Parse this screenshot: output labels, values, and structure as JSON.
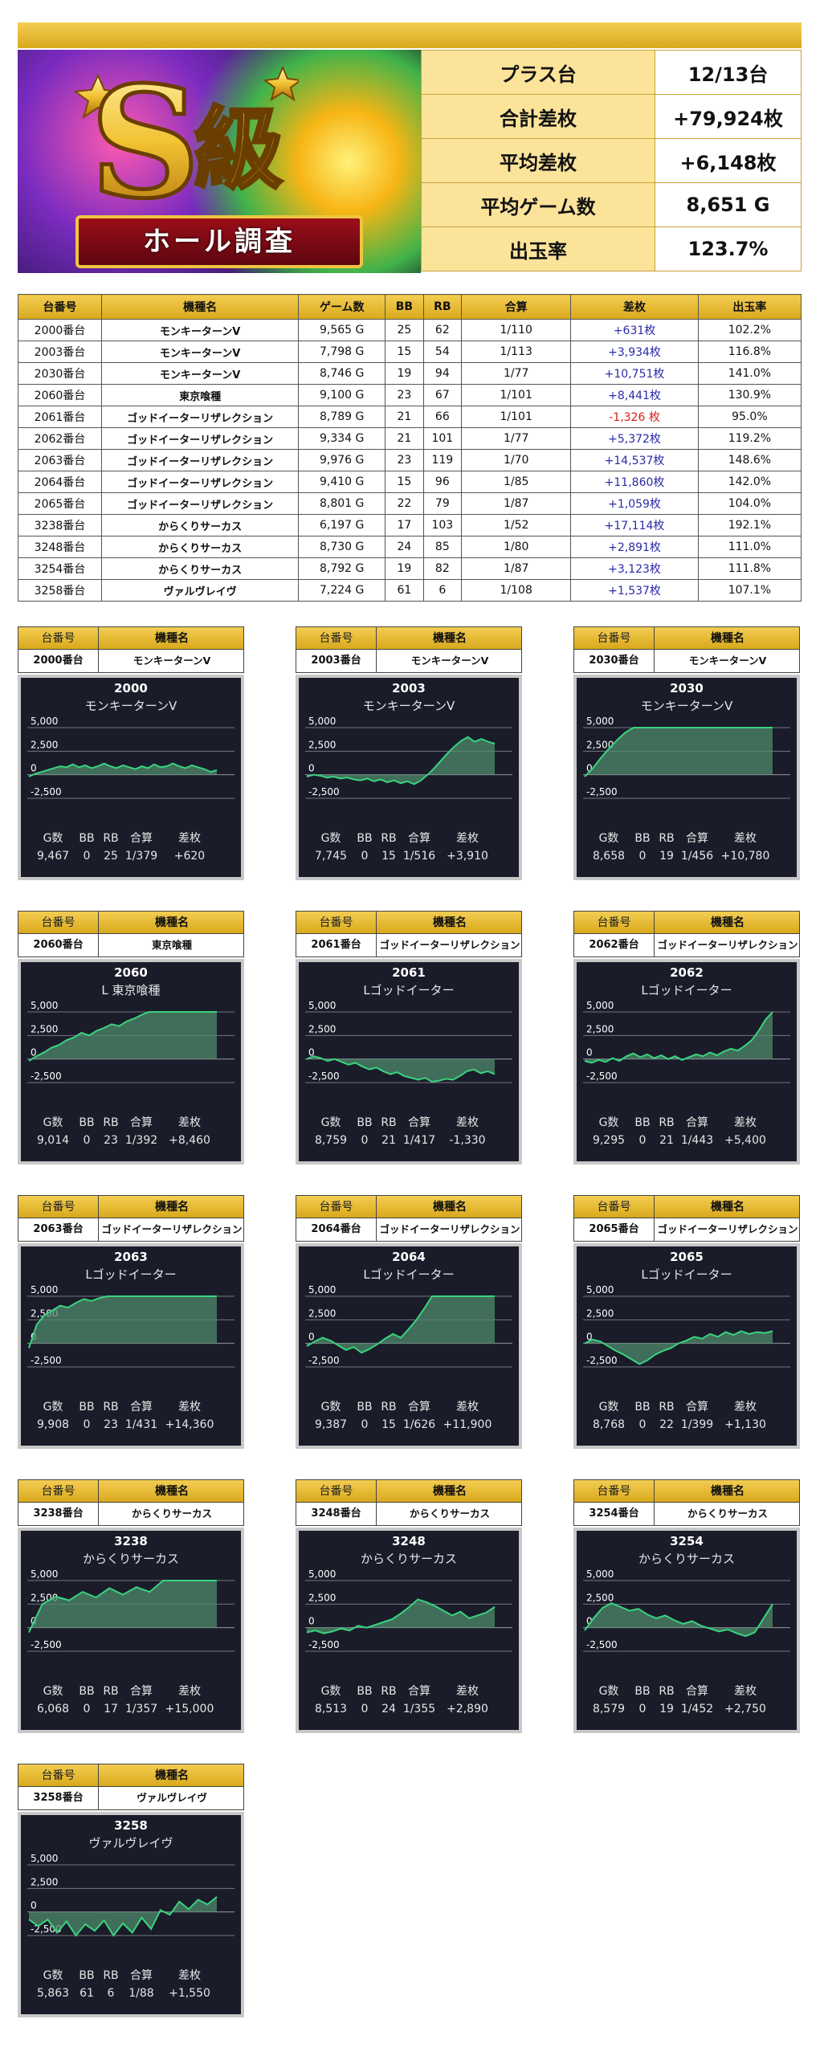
{
  "summary": [
    {
      "label": "プラス台",
      "value": "12/13台"
    },
    {
      "label": "合計差枚",
      "value": "+79,924枚"
    },
    {
      "label": "平均差枚",
      "value": "+6,148枚"
    },
    {
      "label": "平均ゲーム数",
      "value": "8,651 G"
    },
    {
      "label": "出玉率",
      "value": "123.7%"
    }
  ],
  "banner": {
    "mark": "S",
    "grade": "級",
    "ribbon": "ホール調査"
  },
  "table": {
    "headers": [
      "台番号",
      "機種名",
      "ゲーム数",
      "BB",
      "RB",
      "合算",
      "差枚",
      "出玉率"
    ],
    "rows": [
      [
        "2000番台",
        "モンキーターンV",
        "9,565 G",
        "25",
        "62",
        "1/110",
        "+631枚",
        "102.2%"
      ],
      [
        "2003番台",
        "モンキーターンV",
        "7,798 G",
        "15",
        "54",
        "1/113",
        "+3,934枚",
        "116.8%"
      ],
      [
        "2030番台",
        "モンキーターンV",
        "8,746 G",
        "19",
        "94",
        "1/77",
        "+10,751枚",
        "141.0%"
      ],
      [
        "2060番台",
        "東京喰種",
        "9,100 G",
        "23",
        "67",
        "1/101",
        "+8,441枚",
        "130.9%"
      ],
      [
        "2061番台",
        "ゴッドイーターリザレクション",
        "8,789 G",
        "21",
        "66",
        "1/101",
        "-1,326 枚",
        "95.0%"
      ],
      [
        "2062番台",
        "ゴッドイーターリザレクション",
        "9,334 G",
        "21",
        "101",
        "1/77",
        "+5,372枚",
        "119.2%"
      ],
      [
        "2063番台",
        "ゴッドイーターリザレクション",
        "9,976 G",
        "23",
        "119",
        "1/70",
        "+14,537枚",
        "148.6%"
      ],
      [
        "2064番台",
        "ゴッドイーターリザレクション",
        "9,410 G",
        "15",
        "96",
        "1/85",
        "+11,860枚",
        "142.0%"
      ],
      [
        "2065番台",
        "ゴッドイーターリザレクション",
        "8,801 G",
        "22",
        "79",
        "1/87",
        "+1,059枚",
        "104.0%"
      ],
      [
        "3238番台",
        "からくりサーカス",
        "6,197 G",
        "17",
        "103",
        "1/52",
        "+17,114枚",
        "192.1%"
      ],
      [
        "3248番台",
        "からくりサーカス",
        "8,730 G",
        "24",
        "85",
        "1/80",
        "+2,891枚",
        "111.0%"
      ],
      [
        "3254番台",
        "からくりサーカス",
        "8,792 G",
        "19",
        "82",
        "1/87",
        "+3,123枚",
        "111.8%"
      ],
      [
        "3258番台",
        "ヴァルヴレイヴ",
        "7,224 G",
        "61",
        "6",
        "1/108",
        "+1,537枚",
        "107.1%"
      ]
    ]
  },
  "card_labels": {
    "machine_no": "台番号",
    "machine_name": "機種名"
  },
  "chart_axis": {
    "ticks": [
      "5,000",
      "2,500",
      "0",
      "-2,500"
    ],
    "stats_headers": [
      "G数",
      "BB",
      "RB",
      "合算",
      "差枚"
    ]
  },
  "chart_data": [
    {
      "type": "area",
      "number": "2000",
      "title": "モンキーターンV",
      "machine": "2000番台",
      "machine_name": "モンキーターンV",
      "ylim": [
        -2500,
        5000
      ],
      "stats": [
        "9,467",
        "0",
        "25",
        "1/379",
        "+620"
      ],
      "values": [
        -200,
        100,
        300,
        500,
        700,
        900,
        800,
        1100,
        800,
        1000,
        700,
        900,
        1200,
        900,
        700,
        1000,
        800,
        600,
        900,
        700,
        1100,
        800,
        900,
        1200,
        900,
        700,
        1000,
        800,
        600,
        300,
        500
      ]
    },
    {
      "type": "area",
      "number": "2003",
      "title": "モンキーターンV",
      "machine": "2003番台",
      "machine_name": "モンキーターンV",
      "ylim": [
        -2500,
        5000
      ],
      "stats": [
        "7,745",
        "0",
        "15",
        "1/516",
        "+3,910"
      ],
      "values": [
        -200,
        0,
        -100,
        -300,
        -200,
        -400,
        -300,
        -500,
        -600,
        -400,
        -700,
        -500,
        -800,
        -600,
        -900,
        -700,
        -1000,
        -600,
        0,
        700,
        1500,
        2300,
        3000,
        3600,
        4000,
        3500,
        3800,
        3500,
        3300
      ]
    },
    {
      "type": "area",
      "number": "2030",
      "title": "モンキーターンV",
      "machine": "2030番台",
      "machine_name": "モンキーターンV",
      "ylim": [
        -2500,
        5000
      ],
      "stats": [
        "8,658",
        "0",
        "19",
        "1/456",
        "+10,780"
      ],
      "values": [
        -200,
        700,
        1800,
        2800,
        3700,
        4500,
        5000,
        5000,
        5000,
        5000,
        5000,
        5000,
        5000,
        5000,
        5000,
        5000,
        5000,
        5000,
        5000,
        5000,
        5000,
        5000,
        5000,
        5000
      ]
    },
    {
      "type": "area",
      "number": "2060",
      "title": "L 東京喰種",
      "machine": "2060番台",
      "machine_name": "東京喰種",
      "ylim": [
        -2500,
        5000
      ],
      "stats": [
        "9,014",
        "0",
        "23",
        "1/392",
        "+8,460"
      ],
      "values": [
        -200,
        300,
        700,
        1200,
        1500,
        2000,
        2300,
        2800,
        2500,
        3000,
        3300,
        3700,
        3500,
        4000,
        4300,
        4700,
        5000,
        5000,
        5000,
        5000,
        5000,
        5000,
        5000,
        5000,
        5000,
        5000
      ]
    },
    {
      "type": "area",
      "number": "2061",
      "title": "Lゴッドイーター",
      "machine": "2061番台",
      "machine_name": "ゴッドイーターリザレクション",
      "ylim": [
        -2500,
        5000
      ],
      "stats": [
        "8,759",
        "0",
        "21",
        "1/417",
        "-1,330"
      ],
      "values": [
        0,
        300,
        100,
        -200,
        0,
        -300,
        -600,
        -400,
        -800,
        -1100,
        -900,
        -1300,
        -1600,
        -1400,
        -1800,
        -2000,
        -2200,
        -2000,
        -2400,
        -2300,
        -2100,
        -2200,
        -1800,
        -1300,
        -1100,
        -1500,
        -1300,
        -1600
      ]
    },
    {
      "type": "area",
      "number": "2062",
      "title": "Lゴッドイーター",
      "machine": "2062番台",
      "machine_name": "ゴッドイーターリザレクション",
      "ylim": [
        -2500,
        5000
      ],
      "stats": [
        "9,295",
        "0",
        "21",
        "1/443",
        "+5,400"
      ],
      "values": [
        -200,
        -400,
        -100,
        -300,
        100,
        -200,
        300,
        600,
        200,
        500,
        100,
        400,
        0,
        300,
        -100,
        200,
        500,
        300,
        700,
        400,
        800,
        1100,
        900,
        1400,
        2000,
        3000,
        4200,
        5000
      ]
    },
    {
      "type": "area",
      "number": "2063",
      "title": "Lゴッドイーター",
      "machine": "2063番台",
      "machine_name": "ゴッドイーターリザレクション",
      "ylim": [
        -2500,
        5000
      ],
      "stats": [
        "9,908",
        "0",
        "23",
        "1/431",
        "+14,360"
      ],
      "values": [
        -500,
        2000,
        3000,
        3500,
        4000,
        3800,
        4300,
        4700,
        4500,
        4800,
        5000,
        5000,
        5000,
        5000,
        5000,
        5000,
        5000,
        5000,
        5000,
        5000,
        5000,
        5000,
        5000,
        5000,
        5000
      ]
    },
    {
      "type": "area",
      "number": "2064",
      "title": "Lゴッドイーター",
      "machine": "2064番台",
      "machine_name": "ゴッドイーターリザレクション",
      "ylim": [
        -2500,
        5000
      ],
      "stats": [
        "9,387",
        "0",
        "15",
        "1/626",
        "+11,900"
      ],
      "values": [
        -300,
        200,
        600,
        300,
        -200,
        -700,
        -400,
        -1000,
        -600,
        -100,
        500,
        1000,
        600,
        1500,
        2500,
        3700,
        5000,
        5000,
        5000,
        5000,
        5000,
        5000,
        5000,
        5000,
        5000
      ]
    },
    {
      "type": "area",
      "number": "2065",
      "title": "Lゴッドイーター",
      "machine": "2065番台",
      "machine_name": "ゴッドイーターリザレクション",
      "ylim": [
        -2500,
        5000
      ],
      "stats": [
        "8,768",
        "0",
        "22",
        "1/399",
        "+1,130"
      ],
      "values": [
        0,
        400,
        200,
        -300,
        -800,
        -1200,
        -1700,
        -2200,
        -1800,
        -1200,
        -800,
        -500,
        0,
        300,
        700,
        500,
        1000,
        700,
        1200,
        900,
        1300,
        1000,
        1200,
        1100,
        1300
      ]
    },
    {
      "type": "area",
      "number": "3238",
      "title": "からくりサーカス",
      "machine": "3238番台",
      "machine_name": "からくりサーカス",
      "ylim": [
        -2500,
        5000
      ],
      "stats": [
        "6,068",
        "0",
        "17",
        "1/357",
        "+15,000"
      ],
      "values": [
        -500,
        2500,
        3300,
        2900,
        3800,
        3200,
        4200,
        3500,
        4300,
        3800,
        5000,
        5000,
        5000,
        5000,
        5000
      ]
    },
    {
      "type": "area",
      "number": "3248",
      "title": "からくりサーカス",
      "machine": "3248番台",
      "machine_name": "からくりサーカス",
      "ylim": [
        -2500,
        5000
      ],
      "stats": [
        "8,513",
        "0",
        "24",
        "1/355",
        "+2,890"
      ],
      "values": [
        -500,
        -300,
        -600,
        -400,
        -100,
        -300,
        200,
        0,
        300,
        600,
        900,
        1500,
        2200,
        3000,
        2700,
        2300,
        1800,
        1300,
        1700,
        1000,
        1300,
        1600,
        2200
      ]
    },
    {
      "type": "area",
      "number": "3254",
      "title": "からくりサーカス",
      "machine": "3254番台",
      "machine_name": "からくりサーカス",
      "ylim": [
        -2500,
        5000
      ],
      "stats": [
        "8,579",
        "0",
        "19",
        "1/452",
        "+2,750"
      ],
      "values": [
        -300,
        1000,
        2100,
        2600,
        2200,
        1800,
        2000,
        1400,
        1000,
        1300,
        800,
        400,
        700,
        200,
        -100,
        -400,
        -200,
        -600,
        -900,
        -500,
        1000,
        2500
      ]
    },
    {
      "type": "area",
      "number": "3258",
      "title": "ヴァルヴレイヴ",
      "machine": "3258番台",
      "machine_name": "ヴァルヴレイヴ",
      "ylim": [
        -2500,
        5000
      ],
      "stats": [
        "5,863",
        "61",
        "6",
        "1/88",
        "+1,550"
      ],
      "values": [
        -800,
        -1500,
        -800,
        -2200,
        -1000,
        -2500,
        -1300,
        -2000,
        -900,
        -2500,
        -1200,
        -2200,
        -600,
        -1800,
        200,
        -300,
        1100,
        300,
        1300,
        800,
        1600
      ]
    }
  ]
}
